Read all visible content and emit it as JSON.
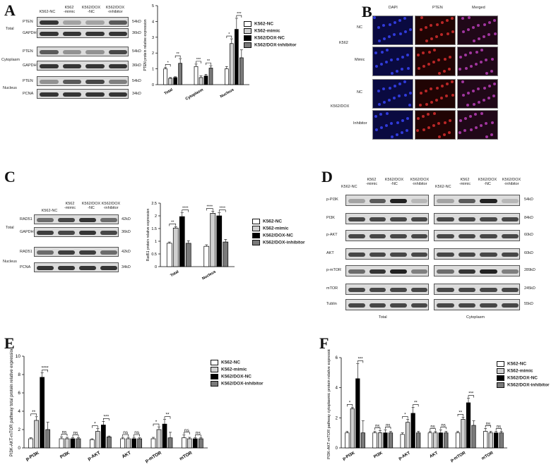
{
  "panels": {
    "A": "A",
    "B": "B",
    "C": "C",
    "D": "D",
    "E": "E",
    "F": "F"
  },
  "colors": {
    "nc": "#ffffff",
    "mimic": "#d0d0d0",
    "doxnc": "#000000",
    "inhibitor": "#7a7a7a"
  },
  "legend": [
    "K562-NC",
    "K562-mimic",
    "K562/DOX-NC",
    "K562/DOX-inhibitor"
  ],
  "blotA": {
    "headers": [
      "K562-NC",
      "K562\n-mimic",
      "K562/DOX\n-NC",
      "K562/DOX\n-inhibitor"
    ],
    "groups": [
      "Total",
      "Cytoplasm",
      "Nucleus"
    ],
    "rows": [
      {
        "label": "PTEN",
        "kd": "54kD"
      },
      {
        "label": "GAPDH",
        "kd": "36kD"
      },
      {
        "label": "PTEN",
        "kd": "54kD"
      },
      {
        "label": "GAPDH",
        "kd": "36kD"
      },
      {
        "label": "PTEN",
        "kd": "54kD"
      },
      {
        "label": "PCNA",
        "kd": "34kD"
      }
    ]
  },
  "microB": {
    "cols": [
      "DAPI",
      "PTEN",
      "Merged"
    ],
    "lines": [
      "K562",
      "K562/DOX"
    ],
    "rows": [
      "NC",
      "Mimic",
      "NC",
      "Inhibitor"
    ]
  },
  "blotC": {
    "headers": [
      "K562-NC",
      "K562\n-mimic",
      "K562/DOX\n-NC",
      "K562/DOX\n-inhibitor"
    ],
    "groups": [
      "Total",
      "Nucleus"
    ],
    "rows": [
      {
        "label": "RAD51",
        "kd": "42kD"
      },
      {
        "label": "GAPDH",
        "kd": "36kD"
      },
      {
        "label": "RAD51",
        "kd": "42kD"
      },
      {
        "label": "PCNA",
        "kd": "34kD"
      }
    ]
  },
  "blotD": {
    "headers": [
      "K562-NC",
      "K562\n-mimic",
      "K562/DOX\n-NC",
      "K562/DOX\n-inhibitor"
    ],
    "rows": [
      {
        "label": "p-PI3K",
        "kd": "54kD"
      },
      {
        "label": "PI3K",
        "kd": "84kD"
      },
      {
        "label": "p-AKT",
        "kd": "60kD"
      },
      {
        "label": "AKT",
        "kd": "60kD"
      },
      {
        "label": "p-mTOR",
        "kd": "289kD"
      },
      {
        "label": "mTOR",
        "kd": "245kD"
      },
      {
        "label": "Tublin",
        "kd": "55kD"
      }
    ],
    "footer": [
      "Total",
      "Cytoplasm"
    ]
  },
  "chart_data": [
    {
      "id": "A",
      "type": "bar",
      "ylabel": "PTEN protein relative expression",
      "ylim": [
        0,
        5
      ],
      "yticks": [
        0,
        1,
        2,
        3,
        4,
        5
      ],
      "categories": [
        "Total",
        "Cytoplasm",
        "Nucleus"
      ],
      "series": [
        {
          "name": "K562-NC",
          "values": [
            1.0,
            1.15,
            1.0
          ],
          "err": [
            0.1,
            0.15,
            0.15
          ]
        },
        {
          "name": "K562-mimic",
          "values": [
            0.4,
            0.45,
            2.6
          ],
          "err": [
            0.05,
            0.1,
            0.3
          ]
        },
        {
          "name": "K562/DOX-NC",
          "values": [
            0.45,
            0.55,
            3.5
          ],
          "err": [
            0.05,
            0.1,
            0.7
          ]
        },
        {
          "name": "K562/DOX-inhibitor",
          "values": [
            1.35,
            1.05,
            1.7
          ],
          "err": [
            0.3,
            0.15,
            0.5
          ]
        }
      ],
      "sig": [
        [
          "*",
          "**"
        ],
        [
          "***",
          "**"
        ],
        [
          "*",
          "***"
        ]
      ]
    },
    {
      "id": "C",
      "type": "bar",
      "ylabel": "Rad51 protein relative expression",
      "ylim": [
        0,
        2.5
      ],
      "yticks": [
        0.0,
        0.5,
        1.0,
        1.5,
        2.0,
        2.5
      ],
      "categories": [
        "Total",
        "Nucleus"
      ],
      "series": [
        {
          "name": "K562-NC",
          "values": [
            0.92,
            0.8
          ],
          "err": [
            0.05,
            0.06
          ]
        },
        {
          "name": "K562-mimic",
          "values": [
            1.52,
            2.1
          ],
          "err": [
            0.05,
            0.08
          ]
        },
        {
          "name": "K562/DOX-NC",
          "values": [
            1.97,
            2.0
          ],
          "err": [
            0.15,
            0.12
          ]
        },
        {
          "name": "K562/DOX-inhibitor",
          "values": [
            0.92,
            0.97
          ],
          "err": [
            0.1,
            0.1
          ]
        }
      ],
      "sig": [
        [
          "**",
          "****"
        ],
        [
          "****",
          "****"
        ]
      ]
    },
    {
      "id": "E",
      "type": "bar",
      "ylabel": "PI3K-AKT-mTOR pathway total protein relative expression",
      "ylim": [
        0,
        10
      ],
      "yticks": [
        0,
        2,
        4,
        6,
        8,
        10
      ],
      "categories": [
        "p-PI3K",
        "PI3K",
        "p-AKT",
        "AKT",
        "p-mTOR",
        "mTOR"
      ],
      "series": [
        {
          "name": "K562-NC",
          "values": [
            1.0,
            1.0,
            0.9,
            1.0,
            1.0,
            1.1
          ],
          "err": [
            0.1,
            0.2,
            0.1,
            0.15,
            0.15,
            0.3
          ]
        },
        {
          "name": "K562-mimic",
          "values": [
            3.0,
            1.0,
            1.8,
            1.0,
            2.0,
            1.0
          ],
          "err": [
            0.4,
            0.15,
            0.3,
            0.15,
            0.3,
            0.15
          ]
        },
        {
          "name": "K562/DOX-NC",
          "values": [
            7.7,
            1.0,
            2.5,
            1.0,
            2.6,
            1.0
          ],
          "err": [
            0.5,
            0.1,
            0.4,
            0.15,
            0.5,
            0.1
          ]
        },
        {
          "name": "K562/DOX-inhibitor",
          "values": [
            2.0,
            1.0,
            1.2,
            1.0,
            1.1,
            1.0
          ],
          "err": [
            0.8,
            0.1,
            0.1,
            0.1,
            0.6,
            0.1
          ]
        }
      ],
      "sig": [
        [
          "**",
          "****"
        ],
        [
          "ns",
          "ns"
        ],
        [
          "*",
          "***"
        ],
        [
          "ns",
          "ns"
        ],
        [
          "*",
          "**"
        ],
        [
          "ns",
          "ns"
        ]
      ]
    },
    {
      "id": "F",
      "type": "bar",
      "ylabel": "PI3K-AKT-mTOR pathway cytoplasmic protein relative expression",
      "ylim": [
        0,
        6
      ],
      "yticks": [
        0,
        2,
        4,
        6
      ],
      "categories": [
        "p-PI3K",
        "PI3K",
        "p-AKT",
        "AKT",
        "p-mTOR",
        "mTOR"
      ],
      "series": [
        {
          "name": "K562-NC",
          "values": [
            1.0,
            1.0,
            0.9,
            1.0,
            1.0,
            1.1
          ],
          "err": [
            0.1,
            0.1,
            0.1,
            0.1,
            0.1,
            0.2
          ]
        },
        {
          "name": "K562-mimic",
          "values": [
            2.6,
            1.0,
            1.7,
            1.0,
            1.9,
            1.0
          ],
          "err": [
            0.1,
            0.15,
            0.2,
            0.1,
            0.15,
            0.1
          ]
        },
        {
          "name": "K562/DOX-NC",
          "values": [
            4.6,
            1.0,
            2.3,
            1.0,
            3.0,
            1.0
          ],
          "err": [
            1.0,
            0.2,
            0.4,
            0.2,
            0.3,
            0.1
          ]
        },
        {
          "name": "K562/DOX-inhibitor",
          "values": [
            1.0,
            1.0,
            1.0,
            1.0,
            1.5,
            1.0
          ],
          "err": [
            0.8,
            0.1,
            0.1,
            0.1,
            0.3,
            0.1
          ]
        }
      ],
      "sig": [
        [
          "*",
          "***"
        ],
        [
          "ns",
          "ns"
        ],
        [
          "*",
          "**"
        ],
        [
          "ns",
          "ns"
        ],
        [
          "**",
          "***"
        ],
        [
          "ns",
          "ns"
        ]
      ]
    }
  ]
}
